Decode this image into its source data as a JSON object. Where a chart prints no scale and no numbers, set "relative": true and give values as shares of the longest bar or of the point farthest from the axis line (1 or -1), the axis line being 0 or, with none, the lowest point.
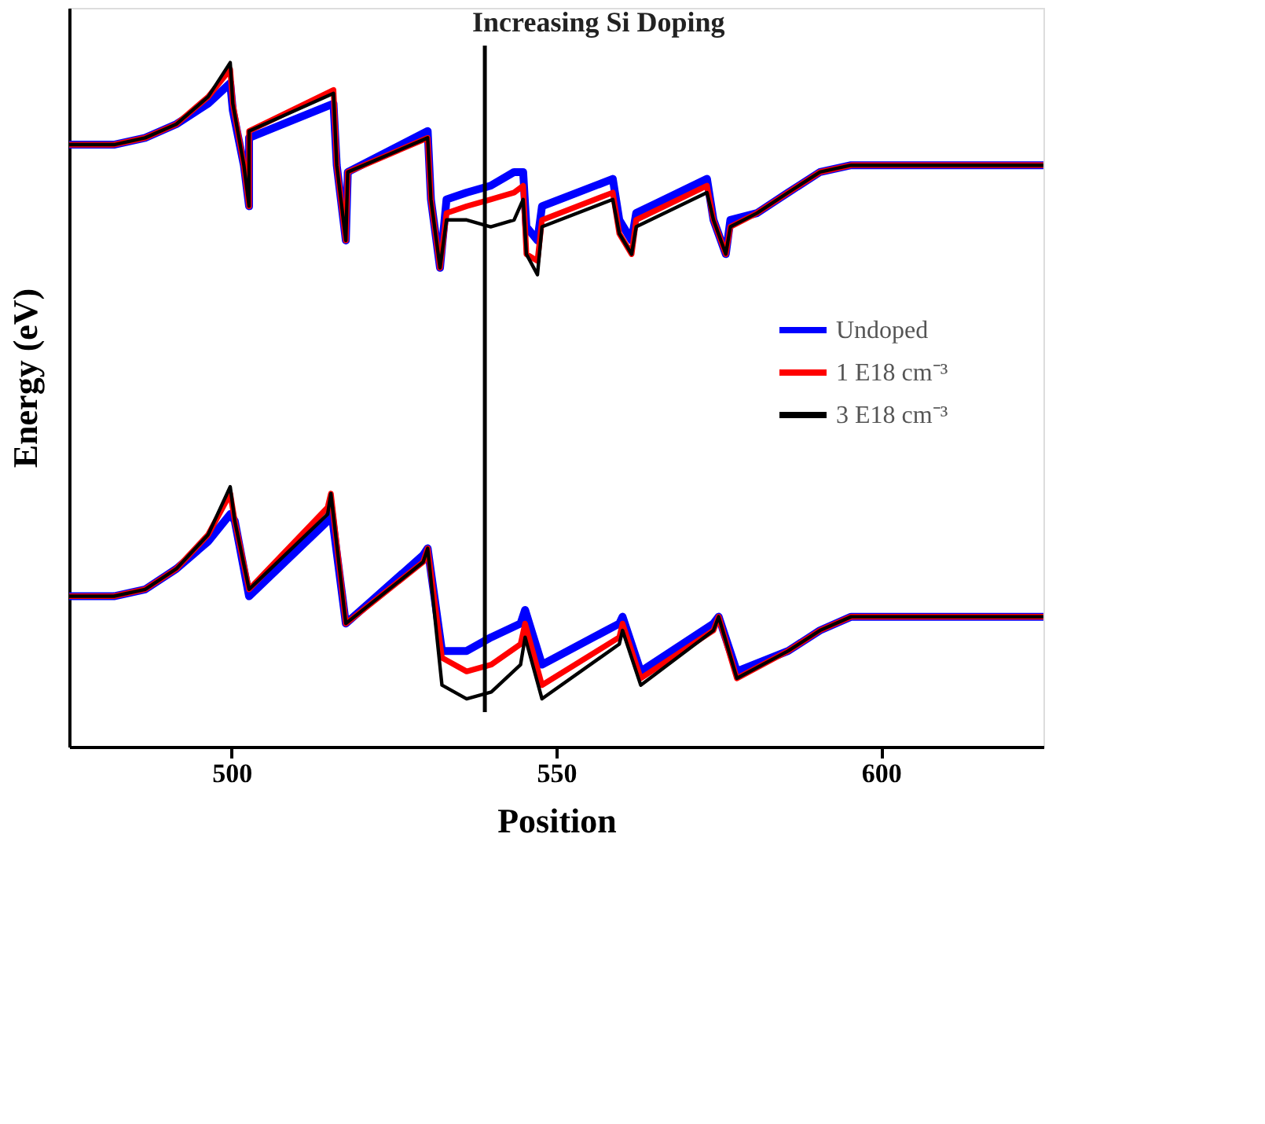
{
  "chart_data": {
    "type": "line",
    "relative": true,
    "xlabel": "Position",
    "ylabel": "Energy (eV)",
    "xlim": [
      475,
      625
    ],
    "xticks": [
      500,
      550,
      600
    ],
    "grid": false,
    "legend": "right",
    "marker": "none",
    "line_style": "solid",
    "tick_labels": "x",
    "ref_lines": [
      {
        "axis": "x",
        "value": 539,
        "label": "Increasing Si Doping",
        "color": "#000000",
        "line_style": "solid"
      }
    ],
    "series": [
      {
        "name": "Undoped",
        "color": "#0000ff",
        "x": [
          475,
          481.9,
          486.7,
          491.5,
          496.4,
          499.8,
          500.2,
          501.9,
          502.7,
          502.7,
          515.7,
          516.2,
          517.6,
          517.9,
          530.2,
          530.7,
          532.1,
          533.1,
          536.2,
          539.9,
          543.5,
          544.9,
          545.4,
          547.1,
          547.8,
          558.7,
          559.7,
          561.6,
          562.3,
          573.2,
          574.2,
          576.1,
          576.8,
          580.9,
          585.7,
          590.6,
          595.4,
          625
        ],
        "values": [
          0.88,
          0.88,
          0.89,
          0.91,
          0.94,
          0.97,
          0.93,
          0.85,
          0.79,
          0.89,
          0.94,
          0.85,
          0.74,
          0.84,
          0.9,
          0.8,
          0.7,
          0.8,
          0.81,
          0.82,
          0.84,
          0.84,
          0.76,
          0.74,
          0.79,
          0.83,
          0.77,
          0.74,
          0.78,
          0.83,
          0.77,
          0.72,
          0.77,
          0.78,
          0.81,
          0.84,
          0.85,
          0.85
        ]
      },
      {
        "name": "1 E18 cm⁻³",
        "color": "#ff0000",
        "x": [
          475,
          481.9,
          486.7,
          491.5,
          496.4,
          499.8,
          500.2,
          501.9,
          502.7,
          502.7,
          515.7,
          516.2,
          517.6,
          517.9,
          530.2,
          530.7,
          532.1,
          533.1,
          536.2,
          539.9,
          543.5,
          544.9,
          545.4,
          547.1,
          547.8,
          558.7,
          559.7,
          561.6,
          562.3,
          573.2,
          574.2,
          576.1,
          576.8,
          580.9,
          585.7,
          590.6,
          595.4,
          625
        ],
        "values": [
          0.88,
          0.88,
          0.89,
          0.91,
          0.95,
          0.99,
          0.94,
          0.85,
          0.79,
          0.9,
          0.96,
          0.85,
          0.74,
          0.84,
          0.89,
          0.8,
          0.7,
          0.78,
          0.79,
          0.8,
          0.81,
          0.82,
          0.72,
          0.71,
          0.77,
          0.81,
          0.75,
          0.72,
          0.77,
          0.82,
          0.77,
          0.72,
          0.76,
          0.78,
          0.81,
          0.84,
          0.85,
          0.85
        ]
      },
      {
        "name": "3 E18 cm⁻³",
        "color": "#000000",
        "x": [
          475,
          481.9,
          486.7,
          491.5,
          496.4,
          499.8,
          500.2,
          501.9,
          502.7,
          502.7,
          515.7,
          516.2,
          517.6,
          517.9,
          530.2,
          530.7,
          532.1,
          533.1,
          536.2,
          539.9,
          543.5,
          544.9,
          545.4,
          547.1,
          547.8,
          558.7,
          559.7,
          561.6,
          562.3,
          573.2,
          574.2,
          576.1,
          576.8,
          580.9,
          585.7,
          590.6,
          595.4,
          625
        ],
        "values": [
          0.88,
          0.88,
          0.89,
          0.91,
          0.95,
          1.0,
          0.94,
          0.85,
          0.79,
          0.9,
          0.955,
          0.85,
          0.74,
          0.84,
          0.89,
          0.8,
          0.7,
          0.77,
          0.77,
          0.76,
          0.77,
          0.8,
          0.72,
          0.69,
          0.76,
          0.8,
          0.75,
          0.72,
          0.76,
          0.81,
          0.77,
          0.72,
          0.76,
          0.78,
          0.81,
          0.84,
          0.85,
          0.85
        ]
      },
      {
        "color": "#0000ff",
        "x": [
          475,
          481.9,
          486.7,
          491.5,
          496.4,
          499.8,
          500.5,
          502.7,
          514.8,
          515.3,
          517.6,
          529.5,
          530.2,
          532.4,
          536.2,
          540,
          544.5,
          545.2,
          547.8,
          559.7,
          560.2,
          563,
          574.2,
          575,
          577.8,
          585.7,
          590.6,
          595.4,
          625
        ],
        "values": [
          0.22,
          0.22,
          0.23,
          0.26,
          0.3,
          0.34,
          0.33,
          0.22,
          0.33,
          0.35,
          0.18,
          0.28,
          0.29,
          0.14,
          0.14,
          0.16,
          0.18,
          0.2,
          0.12,
          0.18,
          0.19,
          0.11,
          0.18,
          0.19,
          0.11,
          0.14,
          0.17,
          0.19,
          0.19
        ]
      },
      {
        "color": "#ff0000",
        "x": [
          475,
          481.9,
          486.7,
          491.5,
          496.4,
          499.8,
          500.5,
          502.7,
          514.8,
          515.3,
          517.6,
          529.5,
          530.2,
          532.4,
          536.2,
          540,
          544.5,
          545.2,
          547.8,
          559.7,
          560.2,
          563,
          574.2,
          575,
          577.8,
          585.7,
          590.6,
          595.4,
          625
        ],
        "values": [
          0.22,
          0.22,
          0.23,
          0.26,
          0.31,
          0.37,
          0.33,
          0.23,
          0.35,
          0.37,
          0.18,
          0.27,
          0.29,
          0.13,
          0.11,
          0.12,
          0.15,
          0.18,
          0.09,
          0.16,
          0.18,
          0.1,
          0.17,
          0.19,
          0.1,
          0.14,
          0.17,
          0.19,
          0.19
        ]
      },
      {
        "color": "#000000",
        "x": [
          475,
          481.9,
          486.7,
          491.5,
          496.4,
          499.8,
          500.5,
          502.7,
          514.8,
          515.3,
          517.6,
          529.5,
          530.2,
          532.4,
          536.2,
          540,
          544.5,
          545.2,
          547.8,
          559.7,
          560.2,
          563,
          574.2,
          575,
          577.8,
          585.7,
          590.6,
          595.4,
          625
        ],
        "values": [
          0.22,
          0.22,
          0.23,
          0.26,
          0.31,
          0.38,
          0.33,
          0.23,
          0.34,
          0.37,
          0.18,
          0.27,
          0.29,
          0.09,
          0.07,
          0.08,
          0.12,
          0.16,
          0.07,
          0.15,
          0.17,
          0.09,
          0.17,
          0.19,
          0.1,
          0.14,
          0.17,
          0.19,
          0.19
        ]
      }
    ]
  }
}
